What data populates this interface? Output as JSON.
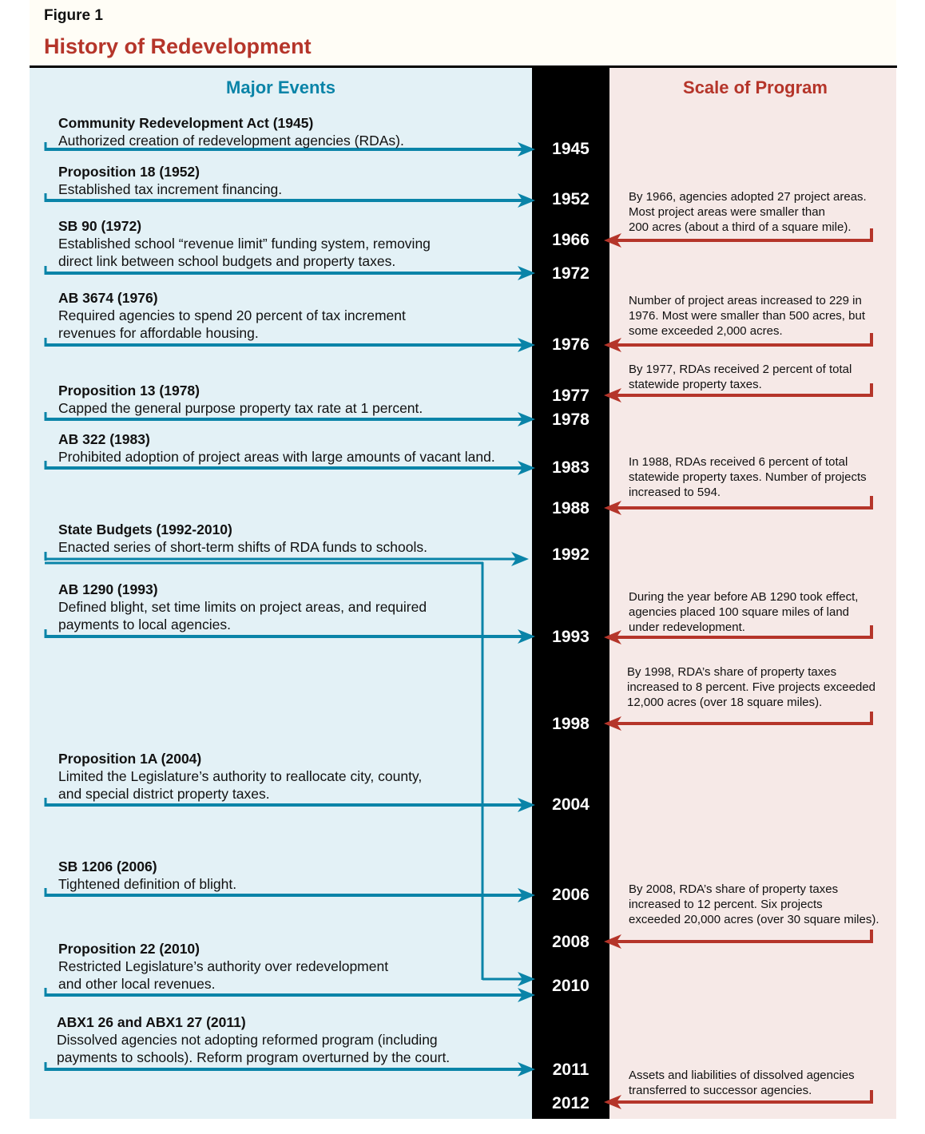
{
  "figure_label": "Figure 1",
  "figure_title": "History of Redevelopment",
  "headers": {
    "left": "Major Events",
    "right": "Scale of Program"
  },
  "colors": {
    "blue": "#0a84a8",
    "red": "#b5352a",
    "left_bg": "#e3f1f6",
    "right_bg": "#f6e9e7"
  },
  "years": [
    "1945",
    "1952",
    "1966",
    "1972",
    "1976",
    "1977",
    "1978",
    "1983",
    "1988",
    "1992",
    "1993",
    "1998",
    "2004",
    "2006",
    "2008",
    "2010",
    "2011",
    "2012"
  ],
  "events": [
    {
      "title": "Community Redevelopment Act (1945)",
      "lines": [
        "Authorized creation of redevelopment agencies (RDAs)."
      ]
    },
    {
      "title": "Proposition 18 (1952)",
      "lines": [
        "Established tax increment financing."
      ]
    },
    {
      "title": "SB 90 (1972)",
      "lines": [
        "Established school “revenue limit” funding system, removing",
        "direct link between school budgets and property taxes."
      ]
    },
    {
      "title": "AB 3674 (1976)",
      "lines": [
        "Required agencies to spend 20 percent of tax increment",
        "revenues for affordable housing."
      ]
    },
    {
      "title": "Proposition 13 (1978)",
      "lines": [
        "Capped the general purpose property tax rate at 1 percent."
      ]
    },
    {
      "title": "AB 322 (1983)",
      "lines": [
        "Prohibited adoption of project areas with large amounts of vacant land."
      ]
    },
    {
      "title": "State Budgets (1992-2010)",
      "lines": [
        "Enacted series of short-term shifts of RDA funds to schools."
      ]
    },
    {
      "title": "AB 1290 (1993)",
      "lines": [
        "Defined blight, set time limits on project areas, and required",
        "payments to local agencies."
      ]
    },
    {
      "title": "Proposition 1A (2004)",
      "lines": [
        "Limited the Legislature’s authority to reallocate city, county,",
        "and special district property taxes."
      ]
    },
    {
      "title": "SB 1206 (2006)",
      "lines": [
        "Tightened definition of blight."
      ]
    },
    {
      "title": "Proposition 22 (2010)",
      "lines": [
        "Restricted Legislature’s authority over redevelopment",
        "and other local revenues."
      ]
    },
    {
      "title": "ABX1 26 and ABX1 27 (2011)",
      "lines": [
        "Dissolved agencies not adopting reformed program (including",
        "payments to schools). Reform program overturned by the court."
      ]
    }
  ],
  "scale_notes": [
    {
      "year": "1966",
      "lines": [
        "By 1966, agencies adopted 27 project areas.",
        "Most project areas were smaller than",
        "200 acres (about a third of a square mile)."
      ]
    },
    {
      "year": "1976",
      "lines": [
        "Number of project areas increased to 229 in",
        "1976. Most were smaller than 500 acres, but",
        "some exceeded 2,000 acres."
      ]
    },
    {
      "year": "1977",
      "lines": [
        "By 1977, RDAs received 2 percent of total",
        "statewide property taxes."
      ]
    },
    {
      "year": "1988",
      "lines": [
        "In 1988, RDAs received 6 percent of total",
        "statewide property taxes. Number of projects",
        "increased to 594."
      ]
    },
    {
      "year": "1993",
      "lines": [
        "During the year before AB 1290 took effect,",
        "agencies placed 100 square miles of land",
        "under redevelopment."
      ]
    },
    {
      "year": "1998",
      "lines": [
        "By 1998, RDA’s share of property taxes",
        "increased to 8 percent. Five projects exceeded",
        "12,000 acres (over 18 square miles)."
      ]
    },
    {
      "year": "2008",
      "lines": [
        "By 2008, RDA’s share of property taxes",
        "increased to 12 percent. Six projects",
        "exceeded 20,000 acres (over 30 square miles)."
      ]
    },
    {
      "year": "2012",
      "lines": [
        "Assets and liabilities of dissolved agencies",
        "transferred to successor agencies."
      ]
    }
  ]
}
